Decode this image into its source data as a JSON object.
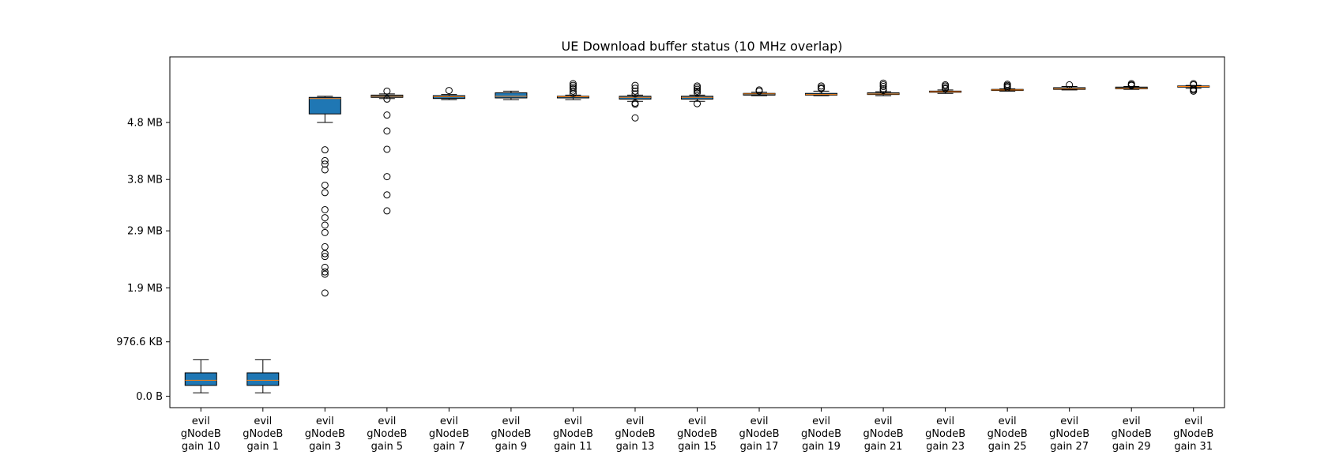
{
  "chart_data": {
    "type": "box",
    "title": "UE Download buffer status (10 MHz overlap)",
    "xlabel": "",
    "ylabel": "",
    "y_unit": "MB",
    "ylim": [
      -0.2,
      5.95
    ],
    "yticks": [
      {
        "value": 0.0,
        "label": "0.0 B"
      },
      {
        "value": 0.9537,
        "label": "976.6 KB"
      },
      {
        "value": 1.9,
        "label": "1.9 MB"
      },
      {
        "value": 2.9,
        "label": "2.9 MB"
      },
      {
        "value": 3.8,
        "label": "3.8 MB"
      },
      {
        "value": 4.8,
        "label": "4.8 MB"
      }
    ],
    "categories": [
      "evil\ngNodeB\ngain 10",
      "evil\ngNodeB\ngain 1",
      "evil\ngNodeB\ngain 3",
      "evil\ngNodeB\ngain 5",
      "evil\ngNodeB\ngain 7",
      "evil\ngNodeB\ngain 9",
      "evil\ngNodeB\ngain 11",
      "evil\ngNodeB\ngain 13",
      "evil\ngNodeB\ngain 15",
      "evil\ngNodeB\ngain 17",
      "evil\ngNodeB\ngain 19",
      "evil\ngNodeB\ngain 21",
      "evil\ngNodeB\ngain 23",
      "evil\ngNodeB\ngain 25",
      "evil\ngNodeB\ngain 27",
      "evil\ngNodeB\ngain 29",
      "evil\ngNodeB\ngain 31"
    ],
    "boxes": [
      {
        "whislo": 0.06,
        "q1": 0.19,
        "med": 0.28,
        "q3": 0.41,
        "whishi": 0.64,
        "fliers": []
      },
      {
        "whislo": 0.06,
        "q1": 0.19,
        "med": 0.28,
        "q3": 0.41,
        "whishi": 0.64,
        "fliers": []
      },
      {
        "whislo": 4.8,
        "q1": 4.95,
        "med": 5.22,
        "q3": 5.24,
        "whishi": 5.26,
        "fliers": [
          4.32,
          4.13,
          4.07,
          3.97,
          3.7,
          3.57,
          3.27,
          3.13,
          3.0,
          2.87,
          2.62,
          2.5,
          2.45,
          2.26,
          2.18,
          2.14,
          1.81
        ]
      },
      {
        "whislo": 5.22,
        "q1": 5.24,
        "med": 5.26,
        "q3": 5.28,
        "whishi": 5.3,
        "fliers": [
          5.35,
          5.21,
          4.93,
          4.65,
          4.33,
          3.85,
          3.53,
          3.25
        ]
      },
      {
        "whislo": 5.2,
        "q1": 5.22,
        "med": 5.25,
        "q3": 5.27,
        "whishi": 5.29,
        "fliers": [
          5.36
        ]
      },
      {
        "whislo": 5.2,
        "q1": 5.23,
        "med": 5.26,
        "q3": 5.32,
        "whishi": 5.35,
        "fliers": []
      },
      {
        "whislo": 5.2,
        "q1": 5.23,
        "med": 5.25,
        "q3": 5.26,
        "whishi": 5.28,
        "fliers": [
          5.48,
          5.45,
          5.42,
          5.39,
          5.35,
          5.31
        ]
      },
      {
        "whislo": 5.17,
        "q1": 5.21,
        "med": 5.24,
        "q3": 5.26,
        "whishi": 5.28,
        "fliers": [
          5.45,
          5.4,
          5.35,
          5.3,
          5.14,
          5.12,
          4.88
        ]
      },
      {
        "whislo": 5.17,
        "q1": 5.21,
        "med": 5.24,
        "q3": 5.26,
        "whishi": 5.28,
        "fliers": [
          5.44,
          5.41,
          5.38,
          5.35,
          5.32,
          5.13
        ]
      },
      {
        "whislo": 5.27,
        "q1": 5.28,
        "med": 5.3,
        "q3": 5.31,
        "whishi": 5.33,
        "fliers": [
          5.37,
          5.35
        ]
      },
      {
        "whislo": 5.27,
        "q1": 5.28,
        "med": 5.29,
        "q3": 5.31,
        "whishi": 5.35,
        "fliers": [
          5.44,
          5.41,
          5.39
        ]
      },
      {
        "whislo": 5.27,
        "q1": 5.29,
        "med": 5.3,
        "q3": 5.32,
        "whishi": 5.34,
        "fliers": [
          5.49,
          5.46,
          5.43,
          5.39,
          5.36
        ]
      },
      {
        "whislo": 5.31,
        "q1": 5.33,
        "med": 5.34,
        "q3": 5.35,
        "whishi": 5.37,
        "fliers": [
          5.46,
          5.44,
          5.41,
          5.39
        ]
      },
      {
        "whislo": 5.35,
        "q1": 5.36,
        "med": 5.37,
        "q3": 5.38,
        "whishi": 5.39,
        "fliers": [
          5.47,
          5.45,
          5.43,
          5.41
        ]
      },
      {
        "whislo": 5.37,
        "q1": 5.38,
        "med": 5.39,
        "q3": 5.41,
        "whishi": 5.43,
        "fliers": [
          5.46
        ]
      },
      {
        "whislo": 5.38,
        "q1": 5.39,
        "med": 5.4,
        "q3": 5.42,
        "whishi": 5.43,
        "fliers": [
          5.48,
          5.46,
          5.45
        ]
      },
      {
        "whislo": 5.4,
        "q1": 5.42,
        "med": 5.43,
        "q3": 5.44,
        "whishi": 5.45,
        "fliers": [
          5.48,
          5.46,
          5.39,
          5.37,
          5.35
        ]
      }
    ],
    "colors": {
      "box_fill": "#1f77b4",
      "median": "#ff7f0e",
      "edge": "#000000"
    },
    "grid": false,
    "legend": "none"
  }
}
